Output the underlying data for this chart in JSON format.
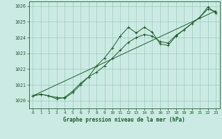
{
  "title": "Graphe pression niveau de la mer (hPa)",
  "bg_color": "#cceae4",
  "grid_color": "#99ccbb",
  "line_color": "#1a5c2a",
  "ylim": [
    1019.5,
    1026.3
  ],
  "xlim": [
    -0.5,
    23.5
  ],
  "yticks": [
    1020,
    1021,
    1022,
    1023,
    1024,
    1025,
    1026
  ],
  "xticks": [
    0,
    1,
    2,
    3,
    4,
    5,
    6,
    7,
    8,
    9,
    10,
    11,
    12,
    13,
    14,
    15,
    16,
    17,
    18,
    19,
    20,
    21,
    22,
    23
  ],
  "series1": [
    1020.3,
    1020.4,
    1020.3,
    1020.2,
    1020.15,
    1020.5,
    1021.0,
    1021.5,
    1022.2,
    1022.7,
    1023.35,
    1024.1,
    1024.65,
    1024.3,
    1024.65,
    1024.35,
    1023.6,
    1023.5,
    1024.1,
    1024.5,
    1024.9,
    1025.3,
    1025.82,
    1025.65
  ],
  "series2": [
    1020.3,
    1020.4,
    1020.3,
    1020.1,
    1020.2,
    1020.6,
    1021.1,
    1021.5,
    1021.8,
    1022.2,
    1022.7,
    1023.2,
    1023.7,
    1024.0,
    1024.2,
    1024.1,
    1023.75,
    1023.65,
    1024.15,
    1024.5,
    1024.9,
    1025.3,
    1025.95,
    1025.55
  ],
  "trend_x": [
    0,
    23
  ],
  "trend_y": [
    1020.3,
    1025.7
  ]
}
